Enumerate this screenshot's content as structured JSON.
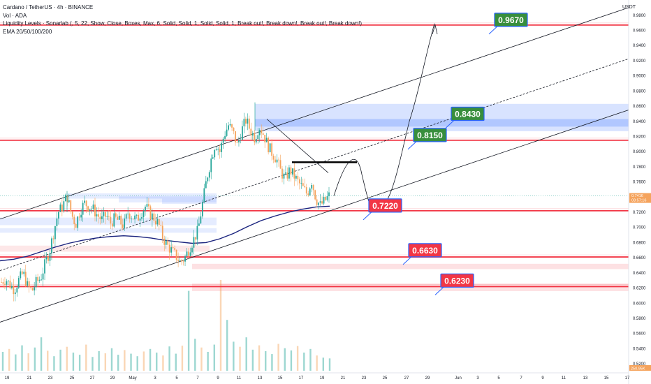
{
  "legend": {
    "title": "Cardano / TetherUS · 4h · BINANCE",
    "vol": "Vol · ADA",
    "liquidity": "Liquidity Levels · Sonarlab (, 5, 22, Show, Close, Boxes, Max, 6, Solid, Solid, 1, Solid, Solid, 1, Break out!, Break down!, Break out!, Break down!)",
    "ema": "EMA 20/50/100/200"
  },
  "currency": "USDT",
  "price_tag": {
    "price": "0.7416",
    "countdown": "03:57:16"
  },
  "volume_tag": "250.95K",
  "colors": {
    "bull": "#26a69a",
    "bear": "#f5a35c",
    "level_red": "#f23645",
    "label_green": "#388e3c",
    "label_red": "#f23645",
    "ema": "#1a237e",
    "zone_blue": "#2962ff",
    "zone_red": "#f23645"
  },
  "chart_data": {
    "type": "candlestick",
    "y_axis": {
      "ylim": [
        0.51,
        0.989
      ],
      "ticks": [
        "0.9800",
        "0.9600",
        "0.9400",
        "0.9200",
        "0.9000",
        "0.8800",
        "0.8600",
        "0.8400",
        "0.8200",
        "0.8000",
        "0.7800",
        "0.7600",
        "0.7400",
        "0.7200",
        "0.7000",
        "0.6800",
        "0.6600",
        "0.6400",
        "0.6200",
        "0.6000",
        "0.5800",
        "0.5600",
        "0.5400",
        "0.5200"
      ]
    },
    "x_axis": {
      "ticks": [
        "19",
        "21",
        "23",
        "25",
        "27",
        "29",
        "May",
        "3",
        "5",
        "7",
        "9",
        "11",
        "13",
        "15",
        "17",
        "19",
        "21",
        "23",
        "25",
        "27",
        "29",
        "Jun",
        "3",
        "5",
        "7",
        "9",
        "11",
        "13",
        "15",
        "17"
      ]
    },
    "horizontal_levels": [
      0.967,
      0.815,
      0.722,
      0.661,
      0.622
    ],
    "level_labels": [
      {
        "text": "0.9670",
        "price": 0.967,
        "color": "green"
      },
      {
        "text": "0.8430",
        "price": 0.843,
        "color": "green"
      },
      {
        "text": "0.8150",
        "price": 0.815,
        "color": "green"
      },
      {
        "text": "0.7220",
        "price": 0.722,
        "color": "red"
      },
      {
        "text": "0.6630",
        "price": 0.663,
        "color": "red"
      },
      {
        "text": "0.6230",
        "price": 0.623,
        "color": "red"
      }
    ],
    "liquidity_zones": [
      {
        "side": "supply",
        "from": 0.827,
        "to": 0.863
      },
      {
        "side": "supply",
        "from": 0.833,
        "to": 0.843
      },
      {
        "side": "demand",
        "from": 0.652,
        "to": 0.645
      },
      {
        "side": "demand",
        "from": 0.626,
        "to": 0.616
      }
    ],
    "channel": {
      "upper": [
        [
          0.0,
          0.711
        ],
        [
          1.0,
          0.99
        ]
      ],
      "lower": [
        [
          0.0,
          0.575
        ],
        [
          1.0,
          0.855
        ]
      ]
    },
    "last_price": 0.7416,
    "projection": [
      0.7416,
      0.78,
      0.74,
      0.722,
      0.967
    ],
    "price_path": [
      0.628,
      0.632,
      0.624,
      0.618,
      0.631,
      0.64,
      0.622,
      0.616,
      0.628,
      0.633,
      0.652,
      0.668,
      0.695,
      0.72,
      0.728,
      0.742,
      0.718,
      0.704,
      0.722,
      0.732,
      0.728,
      0.724,
      0.716,
      0.71,
      0.716,
      0.706,
      0.712,
      0.708,
      0.702,
      0.72,
      0.714,
      0.71,
      0.72,
      0.728,
      0.718,
      0.712,
      0.704,
      0.686,
      0.676,
      0.669,
      0.662,
      0.654,
      0.66,
      0.672,
      0.684,
      0.696,
      0.73,
      0.764,
      0.79,
      0.812,
      0.8,
      0.822,
      0.835,
      0.826,
      0.808,
      0.828,
      0.842,
      0.828,
      0.818,
      0.834,
      0.823,
      0.808,
      0.798,
      0.79,
      0.773,
      0.764,
      0.776,
      0.768,
      0.759,
      0.752,
      0.744,
      0.762,
      0.738,
      0.729,
      0.735,
      0.7416
    ],
    "ema200": [
      0.656,
      0.658,
      0.662,
      0.668,
      0.674,
      0.679,
      0.683,
      0.686,
      0.688,
      0.689,
      0.688,
      0.686,
      0.683,
      0.681,
      0.679,
      0.68,
      0.685,
      0.692,
      0.701,
      0.709,
      0.715,
      0.72,
      0.724,
      0.727,
      0.728
    ],
    "volume": [
      52,
      60,
      45,
      70,
      48,
      64,
      92,
      55,
      40,
      58,
      66,
      50,
      44,
      72,
      38,
      54,
      48,
      62,
      44,
      57,
      47,
      40,
      53,
      60,
      50,
      42,
      67,
      47,
      69,
      220,
      88,
      64,
      52,
      72,
      250,
      140,
      80,
      66,
      92,
      58,
      70,
      54,
      46,
      74,
      62,
      56,
      68,
      50,
      60,
      42,
      36,
      34
    ]
  }
}
